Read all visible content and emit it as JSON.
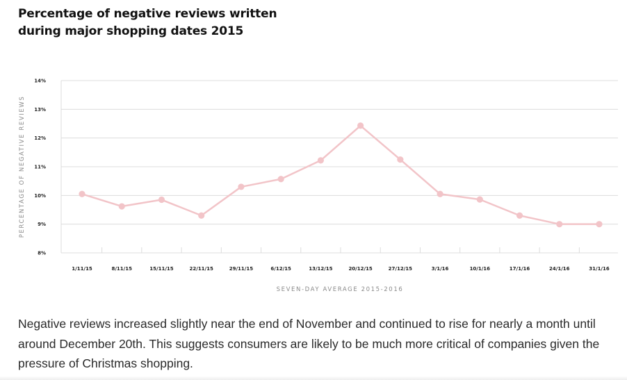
{
  "title": "Percentage of negative reviews written during major shopping dates 2015",
  "caption": "Negative reviews increased slightly near the end of November and continued to rise for nearly a month until around December 20th. This suggests consumers are likely to be much more critical of companies given the pressure of Christmas shopping.",
  "colors": {
    "line": "#f2c4c8",
    "point": "#f2c4c8",
    "grid": "#dcdcdc",
    "axis_text": "#222222",
    "label_text": "#8a8a8a"
  },
  "chart_data": {
    "type": "line",
    "title": "Percentage of negative reviews written during major shopping dates 2015",
    "xlabel": "SEVEN-DAY AVERAGE 2015-2016",
    "ylabel": "PERCENTAGE OF NEGATIVE REVIEWS",
    "categories": [
      "1/11/15",
      "8/11/15",
      "15/11/15",
      "22/11/15",
      "29/11/15",
      "6/12/15",
      "13/12/15",
      "20/12/15",
      "27/12/15",
      "3/1/16",
      "10/1/16",
      "17/1/16",
      "24/1/16",
      "31/1/16"
    ],
    "values": [
      10.05,
      9.62,
      9.85,
      9.3,
      10.3,
      10.57,
      11.22,
      12.43,
      11.25,
      10.05,
      9.86,
      9.3,
      9.0,
      9.0
    ],
    "ylim": [
      8,
      14
    ],
    "yticks": [
      8,
      9,
      10,
      11,
      12,
      13,
      14
    ],
    "ytick_labels": [
      "8%",
      "9%",
      "10%",
      "11%",
      "12%",
      "13%",
      "14%"
    ],
    "grid": true,
    "legend": "none"
  }
}
